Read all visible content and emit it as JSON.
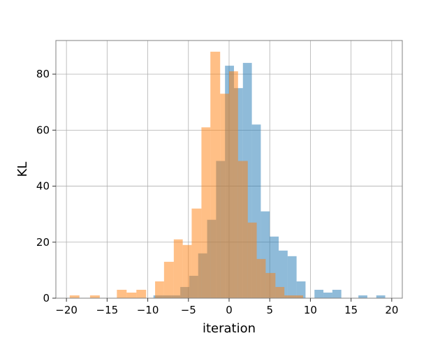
{
  "chart_data": {
    "type": "histogram",
    "title": "",
    "xlabel": "iteration",
    "ylabel": "KL",
    "xlim": [
      -21.3,
      21.3
    ],
    "ylim": [
      0,
      92
    ],
    "grid": true,
    "x_ticks": [
      -20,
      -15,
      -10,
      -5,
      0,
      5,
      10,
      15,
      20
    ],
    "y_ticks": [
      0,
      20,
      40,
      60,
      80
    ],
    "series": [
      {
        "color": "#1f77b4",
        "opacity": 0.5,
        "bins": [
          {
            "x0": -9.3,
            "x1": -8.2,
            "count": 1
          },
          {
            "x0": -8.2,
            "x1": -7.1,
            "count": 1
          },
          {
            "x0": -7.1,
            "x1": -6.0,
            "count": 1
          },
          {
            "x0": -6.0,
            "x1": -4.9,
            "count": 4
          },
          {
            "x0": -4.9,
            "x1": -3.8,
            "count": 8
          },
          {
            "x0": -3.8,
            "x1": -2.7,
            "count": 16
          },
          {
            "x0": -2.7,
            "x1": -1.6,
            "count": 28
          },
          {
            "x0": -1.6,
            "x1": -0.5,
            "count": 49
          },
          {
            "x0": -0.5,
            "x1": 0.6,
            "count": 83
          },
          {
            "x0": 0.6,
            "x1": 1.7,
            "count": 75
          },
          {
            "x0": 1.7,
            "x1": 2.8,
            "count": 84
          },
          {
            "x0": 2.8,
            "x1": 3.9,
            "count": 62
          },
          {
            "x0": 3.9,
            "x1": 5.0,
            "count": 31
          },
          {
            "x0": 5.0,
            "x1": 6.1,
            "count": 22
          },
          {
            "x0": 6.1,
            "x1": 7.2,
            "count": 17
          },
          {
            "x0": 7.2,
            "x1": 8.3,
            "count": 15
          },
          {
            "x0": 8.3,
            "x1": 9.4,
            "count": 6
          },
          {
            "x0": 10.5,
            "x1": 11.6,
            "count": 3
          },
          {
            "x0": 11.6,
            "x1": 12.7,
            "count": 2
          },
          {
            "x0": 12.7,
            "x1": 13.8,
            "count": 3
          },
          {
            "x0": 15.9,
            "x1": 17.0,
            "count": 1
          },
          {
            "x0": 18.1,
            "x1": 19.2,
            "count": 1
          }
        ]
      },
      {
        "color": "#ff7f0e",
        "opacity": 0.5,
        "bins": [
          {
            "x0": -19.6,
            "x1": -18.4,
            "count": 1
          },
          {
            "x0": -17.1,
            "x1": -15.9,
            "count": 1
          },
          {
            "x0": -13.8,
            "x1": -12.6,
            "count": 3
          },
          {
            "x0": -12.6,
            "x1": -11.4,
            "count": 2
          },
          {
            "x0": -11.4,
            "x1": -10.2,
            "count": 3
          },
          {
            "x0": -9.1,
            "x1": -8.0,
            "count": 6
          },
          {
            "x0": -8.0,
            "x1": -6.8,
            "count": 13
          },
          {
            "x0": -6.8,
            "x1": -5.7,
            "count": 21
          },
          {
            "x0": -5.7,
            "x1": -4.6,
            "count": 19
          },
          {
            "x0": -4.6,
            "x1": -3.4,
            "count": 32
          },
          {
            "x0": -3.4,
            "x1": -2.3,
            "count": 61
          },
          {
            "x0": -2.3,
            "x1": -1.1,
            "count": 88
          },
          {
            "x0": -1.1,
            "x1": 0.0,
            "count": 73
          },
          {
            "x0": 0.0,
            "x1": 1.1,
            "count": 81
          },
          {
            "x0": 1.1,
            "x1": 2.3,
            "count": 49
          },
          {
            "x0": 2.3,
            "x1": 3.4,
            "count": 27
          },
          {
            "x0": 3.4,
            "x1": 4.5,
            "count": 14
          },
          {
            "x0": 4.5,
            "x1": 5.7,
            "count": 9
          },
          {
            "x0": 5.7,
            "x1": 6.8,
            "count": 4
          },
          {
            "x0": 6.8,
            "x1": 8.0,
            "count": 1
          },
          {
            "x0": 8.0,
            "x1": 9.1,
            "count": 1
          }
        ]
      }
    ]
  }
}
